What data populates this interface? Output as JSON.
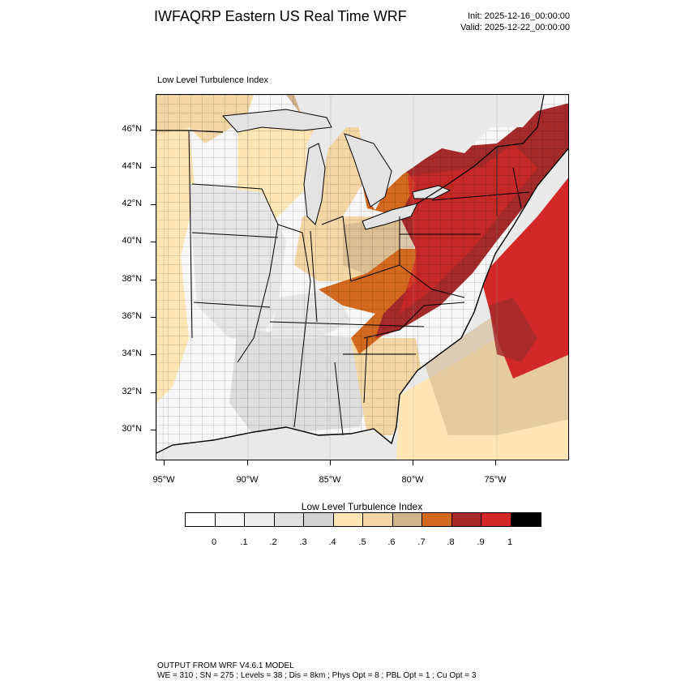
{
  "title": "IWFAQRP Eastern US Real Time WRF",
  "init_label": "Init: 2025-12-16_00:00:00",
  "valid_label": "Valid: 2025-12-22_00:00:00",
  "plot_label": "Low Level Turbulence Index",
  "lat_ticks": [
    "46°N",
    "44°N",
    "42°N",
    "40°N",
    "38°N",
    "36°N",
    "34°N",
    "32°N",
    "30°N"
  ],
  "lon_ticks": [
    "95°W",
    "90°W",
    "85°W",
    "80°W",
    "75°W"
  ],
  "colorbar": {
    "title": "Low Level Turbulence Index",
    "colors": [
      "#ffffff",
      "#f7f7f7",
      "#ededed",
      "#e0e0e0",
      "#d3d3d3",
      "#ffe6b4",
      "#f5d6a5",
      "#d2b48c",
      "#d2691e",
      "#a52a2a",
      "#d22828",
      "#000000"
    ],
    "labels": [
      "0",
      ".1",
      ".2",
      ".3",
      ".4",
      ".5",
      ".6",
      ".7",
      ".8",
      ".9",
      "1"
    ]
  },
  "footer": {
    "line1": "OUTPUT FROM WRF V4.6.1 MODEL",
    "line2": "WE = 310 ; SN = 275 ; Levels = 38 ; Dis = 8km ; Phys Opt = 8 ; PBL Opt = 1 ; Cu Opt = 3"
  }
}
